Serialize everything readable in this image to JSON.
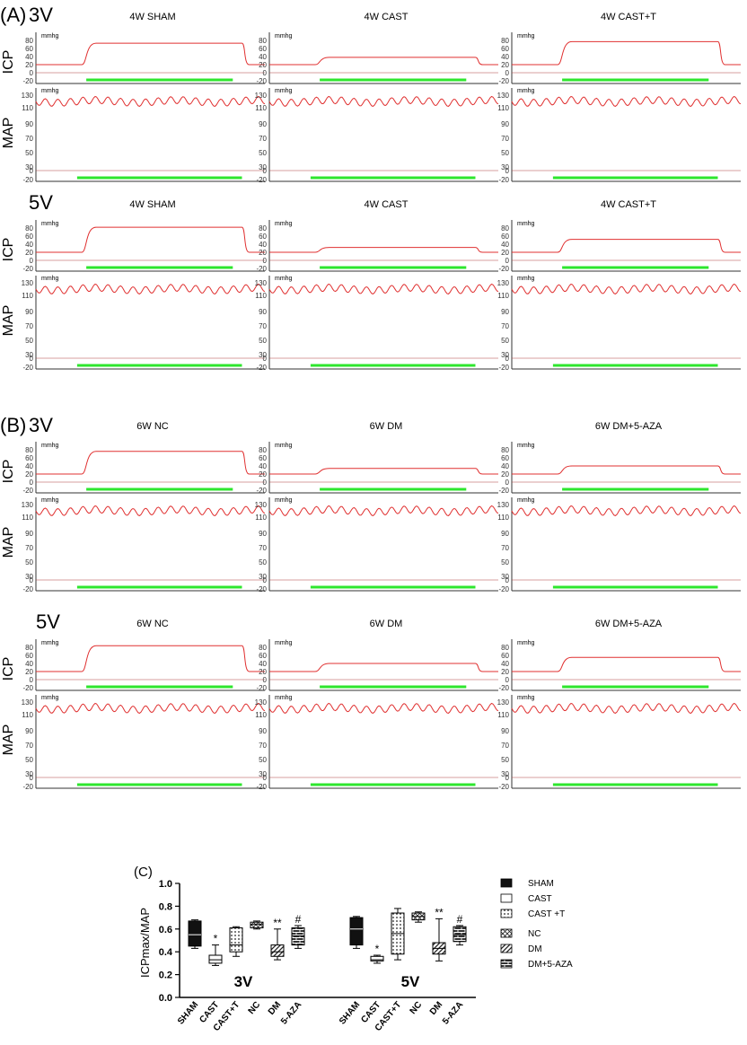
{
  "panel_a": {
    "label": "(A)",
    "rows": [
      {
        "voltage": "3V",
        "titles": [
          "4W SHAM",
          "4W CAST",
          "4W CAST+T"
        ]
      },
      {
        "voltage": "5V",
        "titles": [
          "4W SHAM",
          "4W CAST",
          "4W CAST+T"
        ]
      }
    ]
  },
  "panel_b": {
    "label": "(B)",
    "rows": [
      {
        "voltage": "3V",
        "titles": [
          "6W NC",
          "6W DM",
          "6W DM+5-AZA"
        ]
      },
      {
        "voltage": "5V",
        "titles": [
          "6W NC",
          "6W DM",
          "6W DM+5-AZA"
        ]
      }
    ]
  },
  "trace_labels": {
    "icp": "ICP",
    "map": "MAP",
    "unit": "mmhg"
  },
  "axis_ticks": {
    "icp": [
      "80",
      "60",
      "40",
      "20",
      "0",
      "-20"
    ],
    "map": [
      "130",
      "110",
      "90",
      "70",
      "50",
      "30",
      "0",
      "-20"
    ]
  },
  "trace_plateaus": {
    "panel_a": [
      {
        "voltage": "3V",
        "icp_plateau_mmhg": [
          73,
          38,
          77
        ]
      },
      {
        "voltage": "5V",
        "icp_plateau_mmhg": [
          82,
          32,
          52
        ]
      }
    ],
    "panel_b": [
      {
        "voltage": "3V",
        "icp_plateau_mmhg": [
          76,
          34,
          40
        ]
      },
      {
        "voltage": "5V",
        "icp_plateau_mmhg": [
          84,
          40,
          55
        ]
      }
    ],
    "icp_baseline_mmhg": 20,
    "map_mean_mmhg": 120
  },
  "colors": {
    "trace": "#e03030",
    "stim_bar": "#2ee62e",
    "axis": "#333333",
    "zero_line": "#b04040"
  },
  "chart_data": {
    "type": "box",
    "panel_label": "(C)",
    "ylabel": "ICPmax/MAP",
    "ylim": [
      0.0,
      1.0
    ],
    "yticks": [
      "0.0",
      "0.2",
      "0.4",
      "0.6",
      "0.8",
      "1.0"
    ],
    "groups": [
      {
        "name": "3V",
        "boxes": [
          {
            "label": "SHAM",
            "min": 0.43,
            "q1": 0.45,
            "median": 0.55,
            "q3": 0.67,
            "max": 0.68,
            "mark": ""
          },
          {
            "label": "CAST",
            "min": 0.28,
            "q1": 0.3,
            "median": 0.33,
            "q3": 0.37,
            "max": 0.46,
            "mark": "*"
          },
          {
            "label": "CAST+T",
            "min": 0.36,
            "q1": 0.4,
            "median": 0.46,
            "q3": 0.61,
            "max": 0.62,
            "mark": ""
          },
          {
            "label": "NC",
            "min": 0.6,
            "q1": 0.61,
            "median": 0.64,
            "q3": 0.66,
            "max": 0.67,
            "mark": ""
          },
          {
            "label": "DM",
            "min": 0.33,
            "q1": 0.36,
            "median": 0.4,
            "q3": 0.46,
            "max": 0.6,
            "mark": "**"
          },
          {
            "label": "5-AZA",
            "min": 0.43,
            "q1": 0.46,
            "median": 0.54,
            "q3": 0.61,
            "max": 0.63,
            "mark": "#"
          }
        ]
      },
      {
        "name": "5V",
        "boxes": [
          {
            "label": "SHAM",
            "min": 0.43,
            "q1": 0.46,
            "median": 0.6,
            "q3": 0.7,
            "max": 0.71,
            "mark": ""
          },
          {
            "label": "CAST",
            "min": 0.3,
            "q1": 0.32,
            "median": 0.33,
            "q3": 0.36,
            "max": 0.37,
            "mark": "*"
          },
          {
            "label": "CAST+T",
            "min": 0.33,
            "q1": 0.38,
            "median": 0.56,
            "q3": 0.74,
            "max": 0.78,
            "mark": ""
          },
          {
            "label": "NC",
            "min": 0.66,
            "q1": 0.68,
            "median": 0.71,
            "q3": 0.74,
            "max": 0.75,
            "mark": ""
          },
          {
            "label": "DM",
            "min": 0.32,
            "q1": 0.38,
            "median": 0.43,
            "q3": 0.48,
            "max": 0.69,
            "mark": "**"
          },
          {
            "label": "5-AZA",
            "min": 0.46,
            "q1": 0.49,
            "median": 0.55,
            "q3": 0.62,
            "max": 0.63,
            "mark": "#"
          }
        ]
      }
    ],
    "legend": [
      {
        "label": "SHAM",
        "pattern": "solid"
      },
      {
        "label": "CAST",
        "pattern": "empty"
      },
      {
        "label": "CAST +T",
        "pattern": "dots"
      },
      {
        "label": "NC",
        "pattern": "cross"
      },
      {
        "label": "DM",
        "pattern": "diagonal"
      },
      {
        "label": "DM+5-AZA",
        "pattern": "brick"
      }
    ]
  }
}
